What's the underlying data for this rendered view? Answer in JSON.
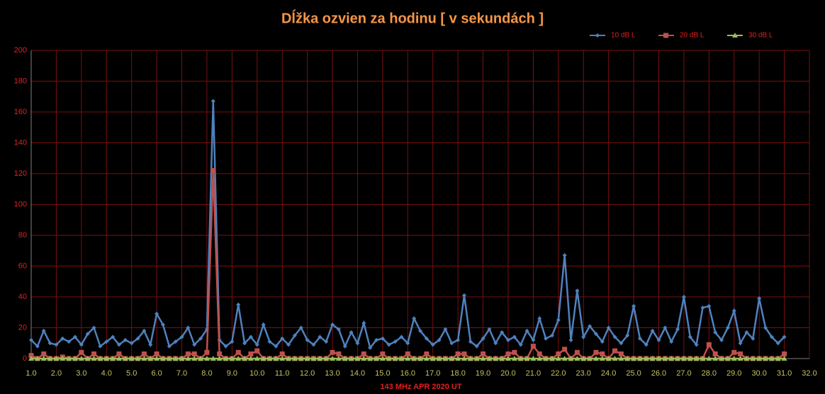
{
  "chart_data": {
    "type": "line",
    "title": "Dĺžka ozvien za hodinu [ v sekundách ]",
    "x_label": "143 MHz APR 2020  UT",
    "x": [
      1,
      1.25,
      1.5,
      1.75,
      2,
      2.25,
      2.5,
      2.75,
      3,
      3.25,
      3.5,
      3.75,
      4,
      4.25,
      4.5,
      4.75,
      5,
      5.25,
      5.5,
      5.75,
      6,
      6.25,
      6.5,
      6.75,
      7,
      7.25,
      7.5,
      7.75,
      8,
      8.25,
      8.5,
      8.75,
      9,
      9.25,
      9.5,
      9.75,
      10,
      10.25,
      10.5,
      10.75,
      11,
      11.25,
      11.5,
      11.75,
      12,
      12.25,
      12.5,
      12.75,
      13,
      13.25,
      13.5,
      13.75,
      14,
      14.25,
      14.5,
      14.75,
      15,
      15.25,
      15.5,
      15.75,
      16,
      16.25,
      16.5,
      16.75,
      17,
      17.25,
      17.5,
      17.75,
      18,
      18.25,
      18.5,
      18.75,
      19,
      19.25,
      19.5,
      19.75,
      20,
      20.25,
      20.5,
      20.75,
      21,
      21.25,
      21.5,
      21.75,
      22,
      22.25,
      22.5,
      22.75,
      23,
      23.25,
      23.5,
      23.75,
      24,
      24.25,
      24.5,
      24.75,
      25,
      25.25,
      25.5,
      25.75,
      26,
      26.25,
      26.5,
      26.75,
      27,
      27.25,
      27.5,
      27.75,
      28,
      28.25,
      28.5,
      28.75,
      29,
      29.25,
      29.5,
      29.75,
      30,
      30.25,
      30.5,
      30.75,
      31
    ],
    "series": [
      {
        "name": "10 dB L",
        "color": "#4f81bd",
        "marker": "diamond",
        "values": [
          12,
          8,
          18,
          10,
          9,
          13,
          11,
          14,
          9,
          16,
          20,
          8,
          11,
          14,
          9,
          12,
          10,
          13,
          18,
          9,
          29,
          22,
          8,
          11,
          14,
          20,
          9,
          13,
          19,
          167,
          12,
          8,
          11,
          35,
          10,
          14,
          9,
          22,
          11,
          8,
          13,
          9,
          15,
          20,
          12,
          9,
          14,
          11,
          22,
          19,
          8,
          17,
          10,
          23,
          7,
          12,
          13,
          9,
          11,
          14,
          10,
          26,
          18,
          13,
          9,
          12,
          19,
          10,
          12,
          41,
          11,
          8,
          13,
          19,
          10,
          17,
          12,
          14,
          9,
          18,
          12,
          26,
          13,
          15,
          25,
          67,
          12,
          44,
          14,
          21,
          16,
          11,
          20,
          14,
          10,
          15,
          34,
          13,
          9,
          18,
          12,
          20,
          11,
          19,
          40,
          14,
          9,
          33,
          34,
          17,
          12,
          20,
          31,
          10,
          17,
          13,
          39,
          20,
          14,
          10,
          14
        ]
      },
      {
        "name": "20 dB L",
        "color": "#c0504d",
        "marker": "square",
        "values": [
          2,
          0,
          3,
          0,
          0,
          1,
          0,
          0,
          4,
          0,
          3,
          0,
          0,
          0,
          3,
          0,
          0,
          0,
          3,
          0,
          3,
          0,
          0,
          0,
          0,
          3,
          3,
          0,
          4,
          122,
          3,
          0,
          0,
          4,
          0,
          3,
          5,
          0,
          0,
          0,
          3,
          0,
          0,
          0,
          0,
          0,
          0,
          0,
          4,
          3,
          0,
          0,
          0,
          3,
          0,
          0,
          3,
          0,
          0,
          0,
          3,
          0,
          0,
          3,
          0,
          0,
          0,
          0,
          3,
          3,
          0,
          0,
          3,
          0,
          0,
          0,
          3,
          4,
          0,
          0,
          8,
          3,
          0,
          0,
          3,
          6,
          0,
          4,
          0,
          0,
          4,
          3,
          0,
          5,
          3,
          0,
          0,
          0,
          0,
          0,
          0,
          0,
          0,
          0,
          0,
          0,
          0,
          0,
          9,
          3,
          0,
          0,
          4,
          3,
          0,
          0,
          0,
          0,
          0,
          0,
          3
        ]
      },
      {
        "name": "30 dB L",
        "color": "#9bbb59",
        "marker": "triangle",
        "values": [
          0,
          0,
          0,
          0,
          0,
          0,
          0,
          0,
          0,
          0,
          0,
          0,
          0,
          0,
          0,
          0,
          0,
          0,
          0,
          0,
          0,
          0,
          0,
          0,
          0,
          0,
          0,
          0,
          0,
          0,
          0,
          0,
          0,
          0,
          0,
          0,
          0,
          0,
          0,
          0,
          0,
          0,
          0,
          0,
          0,
          0,
          0,
          0,
          0,
          0,
          0,
          0,
          0,
          0,
          0,
          0,
          0,
          0,
          0,
          0,
          0,
          0,
          0,
          0,
          0,
          0,
          0,
          0,
          0,
          0,
          0,
          0,
          0,
          0,
          0,
          0,
          0,
          0,
          0,
          0,
          0,
          0,
          0,
          0,
          0,
          0,
          0,
          0,
          0,
          0,
          0,
          0,
          0,
          0,
          0,
          0,
          0,
          0,
          0,
          0,
          0,
          0,
          0,
          0,
          0,
          0,
          0,
          0,
          0,
          0,
          0,
          0,
          0,
          0,
          0,
          0,
          0,
          0,
          0,
          0,
          0
        ]
      }
    ],
    "xlim": [
      1,
      32
    ],
    "xticks": [
      {
        "value": 1,
        "label": "1.0"
      },
      {
        "value": 2,
        "label": "2.0"
      },
      {
        "value": 3,
        "label": "3.0"
      },
      {
        "value": 4,
        "label": "4.0"
      },
      {
        "value": 5,
        "label": "5.0"
      },
      {
        "value": 6,
        "label": "6.0"
      },
      {
        "value": 7,
        "label": "7.0"
      },
      {
        "value": 8,
        "label": "8.0"
      },
      {
        "value": 9,
        "label": "9.0"
      },
      {
        "value": 10,
        "label": "10.0"
      },
      {
        "value": 11,
        "label": "11.0"
      },
      {
        "value": 12,
        "label": "12.0"
      },
      {
        "value": 13,
        "label": "13.0"
      },
      {
        "value": 14,
        "label": "14.0"
      },
      {
        "value": 15,
        "label": "15.0"
      },
      {
        "value": 16,
        "label": "16.0"
      },
      {
        "value": 17,
        "label": "17.0"
      },
      {
        "value": 18,
        "label": "18.0"
      },
      {
        "value": 19,
        "label": "19.0"
      },
      {
        "value": 20,
        "label": "20.0"
      },
      {
        "value": 21,
        "label": "21.0"
      },
      {
        "value": 22,
        "label": "22.0"
      },
      {
        "value": 23,
        "label": "23.0"
      },
      {
        "value": 24,
        "label": "24.0"
      },
      {
        "value": 25,
        "label": "25.0"
      },
      {
        "value": 26,
        "label": "26.0"
      },
      {
        "value": 27,
        "label": "27.0"
      },
      {
        "value": 28,
        "label": "28.0"
      },
      {
        "value": 29,
        "label": "29.0"
      },
      {
        "value": 30,
        "label": "30.0"
      },
      {
        "value": 31,
        "label": "31.0"
      },
      {
        "value": 32,
        "label": "32.0"
      }
    ],
    "ylim": [
      0,
      200
    ],
    "yticks": [
      0,
      20,
      40,
      60,
      80,
      100,
      120,
      140,
      160,
      180,
      200
    ],
    "grid": true,
    "legend": "top-right"
  }
}
